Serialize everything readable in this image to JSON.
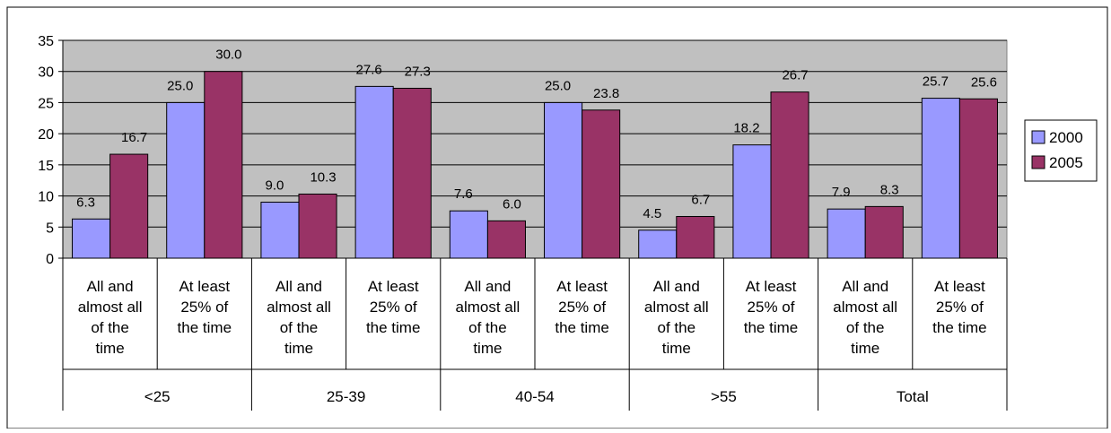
{
  "chart_data": {
    "type": "bar",
    "title": "",
    "xlabel": "",
    "ylabel": "",
    "ylim": [
      0,
      35
    ],
    "yticks": [
      0,
      5,
      10,
      15,
      20,
      25,
      30,
      35
    ],
    "grid": true,
    "legend_position": "right",
    "groups": [
      "<25",
      "25-39",
      "40-54",
      ">55",
      "Total"
    ],
    "subcategories": [
      "All and almost all of the time",
      "At least 25% of the time"
    ],
    "subcategory_lines": [
      [
        "All and",
        "almost all",
        "of the",
        "time"
      ],
      [
        "At least",
        "25% of",
        "the time"
      ]
    ],
    "series": [
      {
        "name": "2000",
        "values": [
          6.3,
          25.0,
          9.0,
          27.6,
          7.6,
          25.0,
          4.5,
          18.2,
          7.9,
          25.7
        ],
        "labels": [
          "6.3",
          "25.0",
          "9.0",
          "27.6",
          "7.6",
          "25.0",
          "4.5",
          "18.2",
          "7.9",
          "25.7"
        ]
      },
      {
        "name": "2005",
        "values": [
          16.7,
          30.0,
          10.3,
          27.3,
          6.0,
          23.8,
          6.7,
          26.7,
          8.3,
          25.6
        ],
        "labels": [
          "16.7",
          "30.0",
          "10.3",
          "27.3",
          "6.0",
          "23.8",
          "6.7",
          "26.7",
          "8.3",
          "25.6"
        ]
      }
    ],
    "colors": {
      "series": [
        "#9999FF",
        "#993366"
      ],
      "plot_background": "#C0C0C0",
      "gridline": "#000000"
    }
  }
}
